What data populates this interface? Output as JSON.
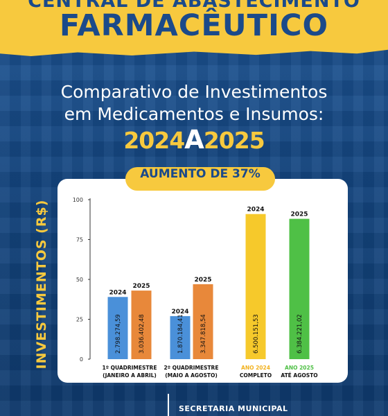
{
  "header": {
    "subtitle": "CENTRAL DE ABASTECIMENTO",
    "title": "FARMACÊUTICO"
  },
  "heading": {
    "line1": "Comparativo de Investimentos",
    "line2": "em Medicamentos e Insumos:",
    "year_from": "2024",
    "year_sep": "A",
    "year_to": "2025"
  },
  "badge": "AUMENTO DE 37%",
  "footer": {
    "text": "SECRETARIA MUNICIPAL"
  },
  "colors": {
    "brand_blue": "#1b4a8a",
    "brand_yellow": "#f7c93e",
    "bar_blue": "#4a90d9",
    "bar_orange": "#e8883a",
    "bar_yellow": "#f6c92b",
    "bar_green": "#4fc046"
  },
  "chart_data": {
    "type": "bar",
    "ylabel": "INVESTIMENTOS (R$)",
    "ylim": [
      0,
      100
    ],
    "yticks": [
      0,
      25,
      50,
      75,
      100
    ],
    "grid": false,
    "groups": [
      {
        "label_lines": [
          "1º QUADRIMESTRE",
          "(JANEIRO A ABRIL)"
        ],
        "bars": [
          {
            "year": "2024",
            "value": 39,
            "label": "2.798.274,59",
            "color": "#4a90d9"
          },
          {
            "year": "2025",
            "value": 43,
            "label": "3.036.402,48",
            "color": "#e8883a"
          }
        ]
      },
      {
        "label_lines": [
          "2º QUADRIMESTRE",
          "(MAIO A AGOSTO)"
        ],
        "bars": [
          {
            "year": "2024",
            "value": 27,
            "label": "1.870.184,41",
            "color": "#4a90d9"
          },
          {
            "year": "2025",
            "value": 47,
            "label": "3.347.818,54",
            "color": "#e8883a"
          }
        ]
      },
      {
        "label_lines": [
          "ANO 2024",
          "COMPLETO"
        ],
        "highlight_color": "#f2b21f",
        "bars": [
          {
            "year": "2024",
            "value": 91,
            "label": "6.500.151,53",
            "color": "#f6c92b"
          }
        ]
      },
      {
        "label_lines": [
          "ANO 2025",
          "ATÉ AGOSTO"
        ],
        "highlight_color": "#4fc046",
        "bars": [
          {
            "year": "2025",
            "value": 88,
            "label": "6.384.221,02",
            "color": "#4fc046"
          }
        ]
      }
    ]
  }
}
